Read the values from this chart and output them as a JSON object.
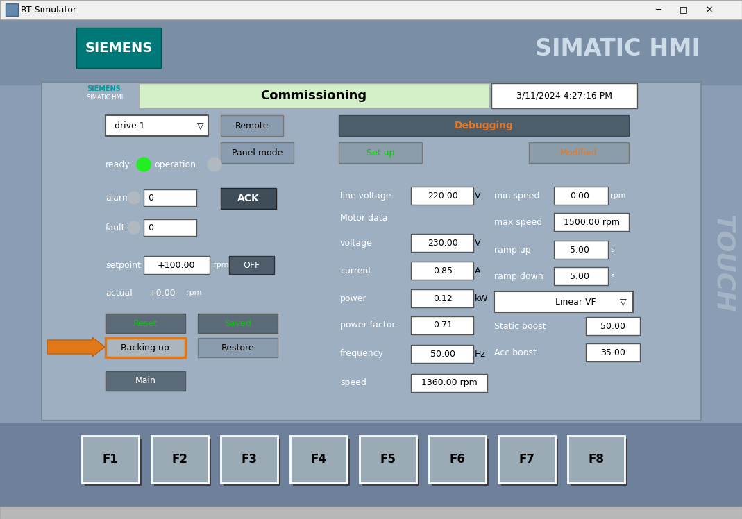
{
  "window_title": "RT Simulator",
  "window_bg": "#c8c8c8",
  "header_bg": "#7a8fa6",
  "content_bg": "#8a9db5",
  "inner_bg": "#9dafc0",
  "siemens_logo_bg": "#007878",
  "siemens_logo_text": "SIEMENS",
  "simatic_hmi_text": "SIMATIC HMI",
  "commissioning_text": "Commissioning",
  "datetime_text": "3/11/2024 4:27:16 PM",
  "touch_text": "TOUCH",
  "drive_label": "drive 1",
  "remote_btn": "Remote",
  "panel_mode_btn": "Panel mode",
  "debugging_btn": "Debugging",
  "setup_btn": "Set up",
  "modified_btn": "Modified",
  "ready_label": "ready",
  "operation_label": "operation",
  "alarm_label": "alarm",
  "alarm_value": "0",
  "fault_label": "fault",
  "fault_value": "0",
  "ack_btn": "ACK",
  "setpoint_label": "setpoint",
  "setpoint_value": "+100.00",
  "setpoint_unit": "rpm",
  "off_btn": "OFF",
  "actual_label": "actual",
  "actual_value": "+0.00",
  "actual_unit": "rpm",
  "reset_btn": "Reset",
  "saved_btn": "Saved",
  "backing_up_btn": "Backing up",
  "restore_btn": "Restore",
  "main_btn": "Main",
  "line_voltage_label": "line voltage",
  "line_voltage_value": "220.00",
  "line_voltage_unit": "V",
  "motor_data_label": "Motor data",
  "voltage_label": "voltage",
  "voltage_value": "230.00",
  "voltage_unit": "V",
  "current_label": "current",
  "current_value": "0.85",
  "current_unit": "A",
  "power_label": "power",
  "power_value": "0.12",
  "power_unit": "kW",
  "power_factor_label": "power factor",
  "power_factor_value": "0.71",
  "frequency_label": "frequency",
  "frequency_value": "50.00",
  "frequency_unit": "Hz",
  "speed_label": "speed",
  "speed_value": "1360.00 rpm",
  "min_speed_label": "min speed",
  "min_speed_value": "0.00",
  "min_speed_unit": "rpm",
  "max_speed_label": "max speed",
  "max_speed_value": "1500.00 rpm",
  "ramp_up_label": "ramp up",
  "ramp_up_value": "5.00",
  "ramp_up_unit": "s",
  "ramp_down_label": "ramp down",
  "ramp_down_value": "5.00",
  "ramp_down_unit": "s",
  "linear_vf_label": "Linear VF",
  "static_boost_label": "Static boost",
  "static_boost_value": "50.00",
  "acc_boost_label": "Acc boost",
  "acc_boost_value": "35.00",
  "fkeys": [
    "F1",
    "F2",
    "F3",
    "F4",
    "F5",
    "F6",
    "F7",
    "F8"
  ],
  "arrow_color": "#e07818",
  "orange_outline": "#e07818",
  "green_text": "#00cc00",
  "orange_text": "#e87722",
  "commissioning_bg": "#d4f0c8",
  "siemens_teal": "#00a0a0",
  "btn_dark": "#5c6b78",
  "btn_mid": "#8a9db0",
  "fkey_bg": "#6e8099",
  "fkey_btn_bg": "#9aabb5"
}
